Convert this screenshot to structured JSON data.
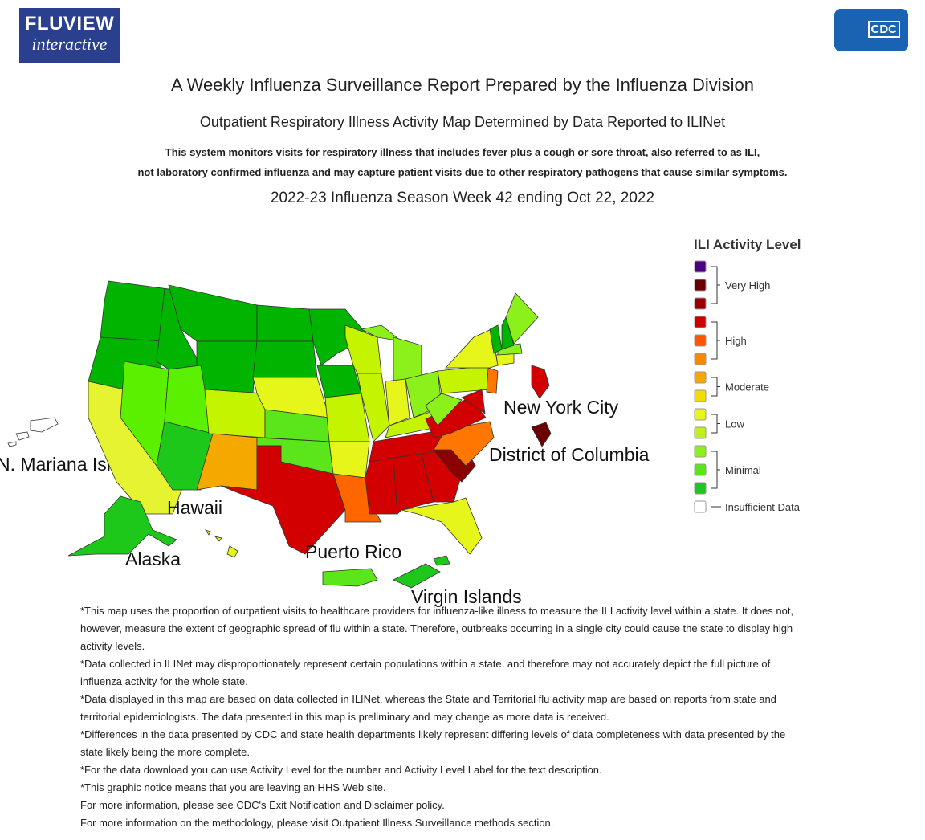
{
  "header": {
    "logo_title": "FLUVIEW",
    "logo_subtitle": "interactive",
    "agency": "CDC",
    "title": "A Weekly Influenza Surveillance Report Prepared by the Influenza Division",
    "subtitle": "Outpatient Respiratory Illness Activity Map Determined by Data Reported to ILINet",
    "description": [
      "This system monitors visits for respiratory illness that includes fever plus a cough or sore throat, also referred to as ILI,",
      "not laboratory confirmed influenza and may capture patient visits due to other respiratory pathogens that cause similar symptoms."
    ],
    "season": "2022-23 Influenza Season Week 42 ending Oct 22, 2022"
  },
  "map": {
    "labels": [
      "N. Mariana Islands",
      "Hawaii",
      "Alaska",
      "Puerto Rico",
      "Virgin Islands",
      "New York City",
      "District of Columbia"
    ]
  },
  "legend": {
    "title": "ILI Activity Level",
    "groups": [
      {
        "label": "Very High",
        "colors": [
          "#4b0082",
          "#6b0000",
          "#990000"
        ]
      },
      {
        "label": "High",
        "colors": [
          "#cc0000",
          "#ff5500",
          "#f58a00"
        ]
      },
      {
        "label": "Moderate",
        "colors": [
          "#f5a800",
          "#f5dc00"
        ]
      },
      {
        "label": "Low",
        "colors": [
          "#e6f51a",
          "#c4f01a"
        ]
      },
      {
        "label": "Minimal",
        "colors": [
          "#8cf01a",
          "#5ae61a",
          "#1ec81a"
        ]
      }
    ],
    "insufficient": {
      "label": "Insufficient Data",
      "color": "#ffffff"
    }
  },
  "notes": [
    "*This map uses the proportion of outpatient visits to healthcare providers for influenza-like illness to measure the ILI activity level within a state. It does not, however, measure the extent of geographic spread of flu within a state. Therefore, outbreaks occurring in a single city could cause the state to display high activity levels.",
    "*Data collected in ILINet may disproportionately represent certain populations within a state, and therefore may not accurately depict the full picture of influenza activity for the whole state.",
    "*Data displayed in this map are based on data collected in ILINet, whereas the State and Territorial flu activity map are based on reports from state and territorial epidemiologists. The data presented in this map is preliminary and may change as more data is received.",
    "*Differences in the data presented by CDC and state health departments likely represent differing levels of data completeness with data presented by the state likely being the more complete.",
    "*For the data download you can use Activity Level for the number and Activity Level Label for the text description.",
    "*This graphic notice means that you are leaving an HHS Web site.",
    "For more information, please see CDC's Exit Notification and Disclaimer policy.",
    "For more information on the methodology, please visit Outpatient Illness Surveillance methods section."
  ]
}
